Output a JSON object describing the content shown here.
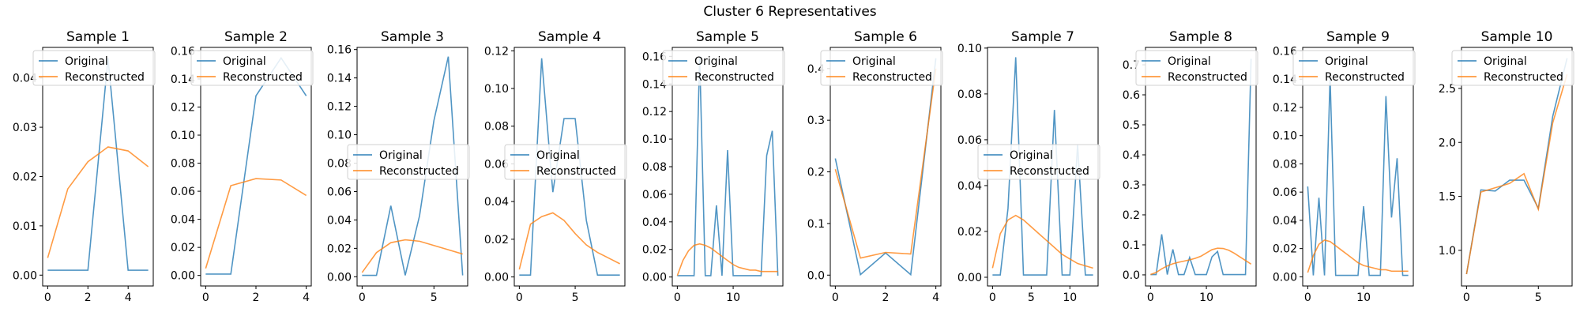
{
  "figure": {
    "suptitle": "Cluster 6 Representatives"
  },
  "colors": {
    "original": "#1f77b4",
    "reconstructed": "#ff7f0e"
  },
  "chart_data": [
    {
      "type": "line",
      "title": "Sample 1",
      "xlim": [
        -0.25,
        5.25
      ],
      "ylim": [
        -0.0022,
        0.0462
      ],
      "xticks": [
        0,
        2,
        4
      ],
      "yticks": [
        0.0,
        0.01,
        0.02,
        0.03,
        0.04
      ],
      "ytick_labels": [
        "0.00",
        "0.01",
        "0.02",
        "0.03",
        "0.04"
      ],
      "legend": {
        "entries": [
          "Original",
          "Reconstructed"
        ],
        "location": "upper-left"
      },
      "series": [
        {
          "name": "Original",
          "x": [
            0,
            1,
            2,
            3,
            4,
            5
          ],
          "y": [
            0.001,
            0.001,
            0.001,
            0.044,
            0.001,
            0.001
          ]
        },
        {
          "name": "Reconstructed",
          "x": [
            0,
            1,
            2,
            3,
            4,
            5
          ],
          "y": [
            0.0035,
            0.0175,
            0.023,
            0.026,
            0.0252,
            0.022
          ]
        }
      ]
    },
    {
      "type": "line",
      "title": "Sample 2",
      "xlim": [
        -0.2,
        4.2
      ],
      "ylim": [
        -0.0075,
        0.1625
      ],
      "xticks": [
        0,
        2,
        4
      ],
      "yticks": [
        0.0,
        0.02,
        0.04,
        0.06,
        0.08,
        0.1,
        0.12,
        0.14,
        0.16
      ],
      "ytick_labels": [
        "0.00",
        "0.02",
        "0.04",
        "0.06",
        "0.08",
        "0.10",
        "0.12",
        "0.14",
        "0.16"
      ],
      "legend": {
        "entries": [
          "Original",
          "Reconstructed"
        ],
        "location": "upper-left"
      },
      "series": [
        {
          "name": "Original",
          "x": [
            0,
            1,
            2,
            3,
            4
          ],
          "y": [
            0.001,
            0.001,
            0.128,
            0.155,
            0.128
          ]
        },
        {
          "name": "Reconstructed",
          "x": [
            0,
            1,
            2,
            3,
            4
          ],
          "y": [
            0.005,
            0.064,
            0.069,
            0.068,
            0.057
          ]
        }
      ]
    },
    {
      "type": "line",
      "title": "Sample 3",
      "xlim": [
        -0.35,
        7.35
      ],
      "ylim": [
        -0.0065,
        0.1615
      ],
      "xticks": [
        0,
        5
      ],
      "yticks": [
        0.0,
        0.02,
        0.04,
        0.06,
        0.08,
        0.1,
        0.12,
        0.14,
        0.16
      ],
      "ytick_labels": [
        "0.00",
        "0.02",
        "0.04",
        "0.06",
        "0.08",
        "0.10",
        "0.12",
        "0.14",
        "0.16"
      ],
      "legend": {
        "entries": [
          "Original",
          "Reconstructed"
        ],
        "location": "center-left"
      },
      "series": [
        {
          "name": "Original",
          "x": [
            0,
            1,
            2,
            3,
            4,
            5,
            6,
            7
          ],
          "y": [
            0.001,
            0.001,
            0.05,
            0.001,
            0.043,
            0.11,
            0.155,
            0.001
          ]
        },
        {
          "name": "Reconstructed",
          "x": [
            0,
            1,
            2,
            3,
            4,
            5,
            6,
            7
          ],
          "y": [
            0.003,
            0.017,
            0.024,
            0.026,
            0.025,
            0.022,
            0.019,
            0.016
          ]
        }
      ]
    },
    {
      "type": "line",
      "title": "Sample 4",
      "xlim": [
        -0.45,
        9.45
      ],
      "ylim": [
        -0.0048,
        0.1218
      ],
      "xticks": [
        0,
        5
      ],
      "yticks": [
        0.0,
        0.02,
        0.04,
        0.06,
        0.08,
        0.1,
        0.12
      ],
      "ytick_labels": [
        "0.00",
        "0.02",
        "0.04",
        "0.06",
        "0.08",
        "0.10",
        "0.12"
      ],
      "legend": {
        "entries": [
          "Original",
          "Reconstructed"
        ],
        "location": "center-left"
      },
      "series": [
        {
          "name": "Original",
          "x": [
            0,
            1,
            2,
            3,
            4,
            5,
            6,
            7,
            8,
            9
          ],
          "y": [
            0.001,
            0.001,
            0.116,
            0.045,
            0.084,
            0.084,
            0.03,
            0.001,
            0.001,
            0.001
          ]
        },
        {
          "name": "Reconstructed",
          "x": [
            0,
            1,
            2,
            3,
            4,
            5,
            6,
            7,
            8,
            9
          ],
          "y": [
            0.004,
            0.028,
            0.032,
            0.034,
            0.03,
            0.023,
            0.017,
            0.013,
            0.01,
            0.007
          ]
        }
      ]
    },
    {
      "type": "line",
      "title": "Sample 5",
      "xlim": [
        -0.9,
        18.9
      ],
      "ylim": [
        -0.0065,
        0.1665
      ],
      "xticks": [
        0,
        10
      ],
      "yticks": [
        0.0,
        0.02,
        0.04,
        0.06,
        0.08,
        0.1,
        0.12,
        0.14,
        0.16
      ],
      "ytick_labels": [
        "0.00",
        "0.02",
        "0.04",
        "0.06",
        "0.08",
        "0.10",
        "0.12",
        "0.14",
        "0.16"
      ],
      "legend": {
        "entries": [
          "Original",
          "Reconstructed"
        ],
        "location": "upper-left"
      },
      "series": [
        {
          "name": "Original",
          "x": [
            0,
            1,
            2,
            3,
            4,
            5,
            6,
            7,
            8,
            9,
            10,
            11,
            12,
            13,
            14,
            15,
            16,
            17,
            18
          ],
          "y": [
            0.001,
            0.001,
            0.001,
            0.001,
            0.16,
            0.001,
            0.001,
            0.052,
            0.001,
            0.092,
            0.001,
            0.001,
            0.001,
            0.001,
            0.001,
            0.001,
            0.088,
            0.106,
            0.001
          ]
        },
        {
          "name": "Reconstructed",
          "x": [
            0,
            1,
            2,
            3,
            4,
            5,
            6,
            7,
            8,
            9,
            10,
            11,
            12,
            13,
            14,
            15,
            16,
            17,
            18
          ],
          "y": [
            0.001,
            0.012,
            0.019,
            0.023,
            0.024,
            0.023,
            0.021,
            0.018,
            0.015,
            0.012,
            0.009,
            0.007,
            0.006,
            0.005,
            0.005,
            0.004,
            0.004,
            0.004,
            0.004
          ]
        }
      ]
    },
    {
      "type": "line",
      "title": "Sample 6",
      "xlim": [
        -0.2,
        4.2
      ],
      "ylim": [
        -0.021,
        0.441
      ],
      "xticks": [
        0,
        2,
        4
      ],
      "yticks": [
        0.0,
        0.1,
        0.2,
        0.3,
        0.4
      ],
      "ytick_labels": [
        "0.0",
        "0.1",
        "0.2",
        "0.3",
        "0.4"
      ],
      "legend": {
        "entries": [
          "Original",
          "Reconstructed"
        ],
        "location": "upper-left"
      },
      "series": [
        {
          "name": "Original",
          "x": [
            0,
            1,
            2,
            3,
            4
          ],
          "y": [
            0.226,
            0.001,
            0.043,
            0.001,
            0.42
          ]
        },
        {
          "name": "Reconstructed",
          "x": [
            0,
            1,
            2,
            3,
            4
          ],
          "y": [
            0.205,
            0.033,
            0.044,
            0.041,
            0.4
          ]
        }
      ]
    },
    {
      "type": "line",
      "title": "Sample 7",
      "xlim": [
        -0.65,
        13.65
      ],
      "ylim": [
        -0.0038,
        0.1003
      ],
      "xticks": [
        0,
        5,
        10
      ],
      "yticks": [
        0.0,
        0.02,
        0.04,
        0.06,
        0.08,
        0.1
      ],
      "ytick_labels": [
        "0.00",
        "0.02",
        "0.04",
        "0.06",
        "0.08",
        "0.10"
      ],
      "legend": {
        "entries": [
          "Original",
          "Reconstructed"
        ],
        "location": "center-left"
      },
      "series": [
        {
          "name": "Original",
          "x": [
            0,
            1,
            2,
            3,
            4,
            5,
            6,
            7,
            8,
            9,
            10,
            11,
            12,
            13
          ],
          "y": [
            0.001,
            0.001,
            0.03,
            0.096,
            0.001,
            0.001,
            0.001,
            0.001,
            0.073,
            0.001,
            0.001,
            0.058,
            0.001,
            0.001
          ]
        },
        {
          "name": "Reconstructed",
          "x": [
            0,
            1,
            2,
            3,
            4,
            5,
            6,
            7,
            8,
            9,
            10,
            11,
            12,
            13
          ],
          "y": [
            0.004,
            0.019,
            0.025,
            0.027,
            0.025,
            0.022,
            0.019,
            0.016,
            0.013,
            0.01,
            0.008,
            0.006,
            0.005,
            0.004
          ]
        }
      ]
    },
    {
      "type": "line",
      "title": "Sample 8",
      "xlim": [
        -0.9,
        18.9
      ],
      "ylim": [
        -0.037,
        0.758
      ],
      "xticks": [
        0,
        10
      ],
      "yticks": [
        0.0,
        0.1,
        0.2,
        0.3,
        0.4,
        0.5,
        0.6,
        0.7
      ],
      "ytick_labels": [
        "0.0",
        "0.1",
        "0.2",
        "0.3",
        "0.4",
        "0.5",
        "0.6",
        "0.7"
      ],
      "legend": {
        "entries": [
          "Original",
          "Reconstructed"
        ],
        "location": "upper-left"
      },
      "series": [
        {
          "name": "Original",
          "x": [
            0,
            1,
            2,
            3,
            4,
            5,
            6,
            7,
            8,
            9,
            10,
            11,
            12,
            13,
            14,
            15,
            16,
            17,
            18
          ],
          "y": [
            0.001,
            0.001,
            0.135,
            0.001,
            0.085,
            0.001,
            0.001,
            0.058,
            0.001,
            0.001,
            0.001,
            0.06,
            0.078,
            0.001,
            0.001,
            0.001,
            0.001,
            0.001,
            0.72
          ]
        },
        {
          "name": "Reconstructed",
          "x": [
            0,
            1,
            2,
            3,
            4,
            5,
            6,
            7,
            8,
            9,
            10,
            11,
            12,
            13,
            14,
            15,
            16,
            17,
            18
          ],
          "y": [
            0.001,
            0.008,
            0.02,
            0.03,
            0.037,
            0.042,
            0.046,
            0.05,
            0.055,
            0.062,
            0.073,
            0.084,
            0.089,
            0.088,
            0.082,
            0.072,
            0.06,
            0.048,
            0.036
          ]
        }
      ]
    },
    {
      "type": "line",
      "title": "Sample 9",
      "xlim": [
        -0.9,
        18.9
      ],
      "ylim": [
        -0.0065,
        0.1625
      ],
      "xticks": [
        0,
        10
      ],
      "yticks": [
        0.0,
        0.02,
        0.04,
        0.06,
        0.08,
        0.1,
        0.12,
        0.14,
        0.16
      ],
      "ytick_labels": [
        "0.00",
        "0.02",
        "0.04",
        "0.06",
        "0.08",
        "0.10",
        "0.12",
        "0.14",
        "0.16"
      ],
      "legend": {
        "entries": [
          "Original",
          "Reconstructed"
        ],
        "location": "upper-left"
      },
      "series": [
        {
          "name": "Original",
          "x": [
            0,
            1,
            2,
            3,
            4,
            5,
            6,
            7,
            8,
            9,
            10,
            11,
            12,
            13,
            14,
            15,
            16,
            17,
            18
          ],
          "y": [
            0.064,
            0.001,
            0.056,
            0.001,
            0.142,
            0.001,
            0.001,
            0.001,
            0.001,
            0.001,
            0.05,
            0.001,
            0.001,
            0.001,
            0.128,
            0.042,
            0.084,
            0.001,
            0.001
          ]
        },
        {
          "name": "Reconstructed",
          "x": [
            0,
            1,
            2,
            3,
            4,
            5,
            6,
            7,
            8,
            9,
            10,
            11,
            12,
            13,
            14,
            15,
            16,
            17,
            18
          ],
          "y": [
            0.003,
            0.015,
            0.023,
            0.026,
            0.025,
            0.022,
            0.019,
            0.016,
            0.013,
            0.01,
            0.008,
            0.007,
            0.006,
            0.005,
            0.005,
            0.004,
            0.004,
            0.004,
            0.004
          ]
        }
      ]
    },
    {
      "type": "line",
      "title": "Sample 10",
      "xlim": [
        -0.35,
        7.35
      ],
      "ylim": [
        0.67,
        2.88
      ],
      "xticks": [
        0,
        5
      ],
      "yticks": [
        1.0,
        1.5,
        2.0,
        2.5
      ],
      "ytick_labels": [
        "1.0",
        "1.5",
        "2.0",
        "2.5"
      ],
      "legend": {
        "entries": [
          "Original",
          "Reconstructed"
        ],
        "location": "upper-left"
      },
      "series": [
        {
          "name": "Original",
          "x": [
            0,
            1,
            2,
            3,
            4,
            5,
            6,
            7
          ],
          "y": [
            0.78,
            1.56,
            1.55,
            1.65,
            1.65,
            1.39,
            2.24,
            2.78
          ]
        },
        {
          "name": "Reconstructed",
          "x": [
            0,
            1,
            2,
            3,
            4,
            5,
            6,
            7
          ],
          "y": [
            0.78,
            1.54,
            1.58,
            1.62,
            1.71,
            1.38,
            2.18,
            2.63
          ]
        }
      ]
    }
  ]
}
